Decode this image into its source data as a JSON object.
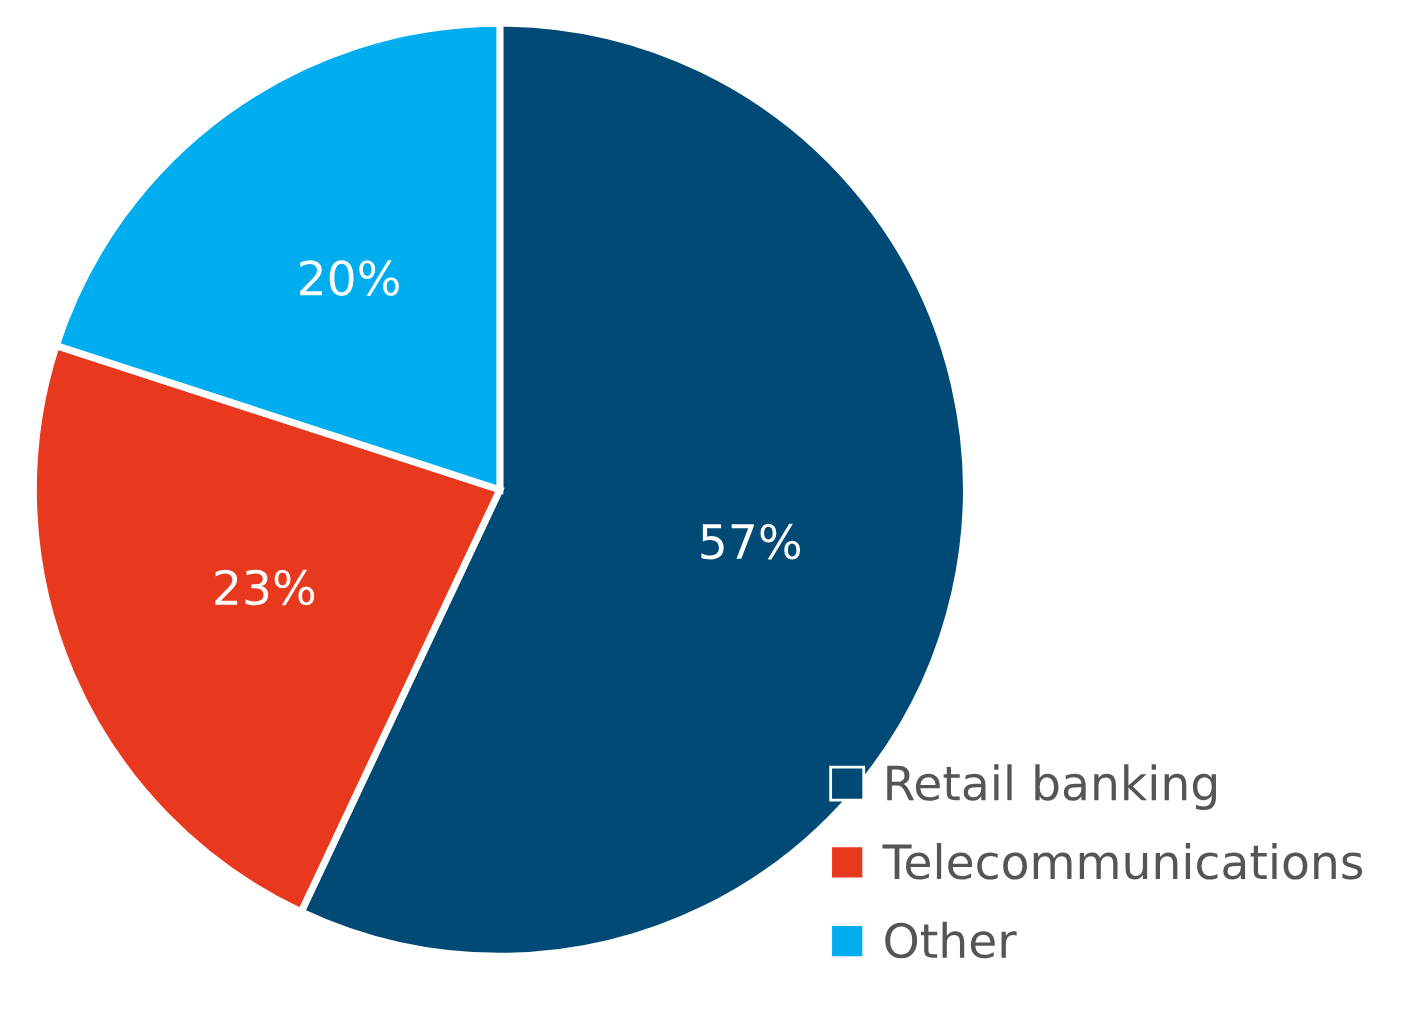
{
  "chart_data": {
    "type": "pie",
    "categories": [
      "Retail banking",
      "Telecommunications",
      "Other"
    ],
    "values": [
      57,
      23,
      20
    ],
    "colors": [
      "#004a75",
      "#e8391f",
      "#00aeef"
    ],
    "value_labels": [
      "57%",
      "23%",
      "20%"
    ],
    "legend": "bottom right"
  }
}
